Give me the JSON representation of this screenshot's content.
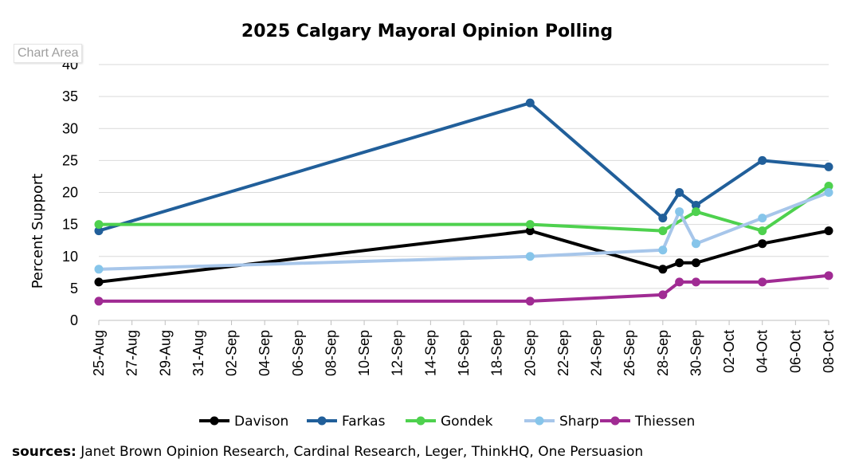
{
  "tooltip": "Chart Area",
  "source": {
    "label": "sources:",
    "text": " Janet Brown Opinion Research, Cardinal Research, Leger, ThinkHQ, One Persuasion"
  },
  "chart_data": {
    "type": "line",
    "title": "2025 Calgary Mayoral Opinion Polling",
    "ylabel": "Percent Support",
    "xlabel": "",
    "ylim": [
      0,
      40
    ],
    "yticks": [
      0,
      5,
      10,
      15,
      20,
      25,
      30,
      35,
      40
    ],
    "xlim": [
      "2025-08-25",
      "2025-10-08"
    ],
    "xtick_labels": [
      "25-Aug",
      "27-Aug",
      "29-Aug",
      "31-Aug",
      "02-Sep",
      "04-Sep",
      "06-Sep",
      "08-Sep",
      "10-Sep",
      "12-Sep",
      "14-Sep",
      "16-Sep",
      "18-Sep",
      "20-Sep",
      "22-Sep",
      "24-Sep",
      "26-Sep",
      "28-Sep",
      "30-Sep",
      "02-Oct",
      "04-Oct",
      "06-Oct",
      "08-Oct"
    ],
    "grid": true,
    "legend_position": "bottom",
    "series": [
      {
        "name": "Davison",
        "color": "#000000",
        "x": [
          "2025-08-25",
          "2025-09-20",
          "2025-09-28",
          "2025-09-29",
          "2025-09-30",
          "2025-10-04",
          "2025-10-08"
        ],
        "values": [
          6,
          14,
          8,
          9,
          9,
          12,
          14
        ]
      },
      {
        "name": "Farkas",
        "color": "#215f9a",
        "x": [
          "2025-08-25",
          "2025-09-20",
          "2025-09-28",
          "2025-09-29",
          "2025-09-30",
          "2025-10-04",
          "2025-10-08"
        ],
        "values": [
          14,
          34,
          16,
          20,
          18,
          25,
          24
        ]
      },
      {
        "name": "Gondek",
        "color": "#4ed14e",
        "x": [
          "2025-08-25",
          "2025-09-20",
          "2025-09-28",
          "2025-09-30",
          "2025-10-04",
          "2025-10-08"
        ],
        "values": [
          15,
          15,
          14,
          17,
          14,
          21
        ]
      },
      {
        "name": "Sharp",
        "color": "#a7c6ea",
        "x": [
          "2025-08-25",
          "2025-09-20",
          "2025-09-28",
          "2025-09-29",
          "2025-09-30",
          "2025-10-04",
          "2025-10-08"
        ],
        "values": [
          8,
          10,
          11,
          17,
          12,
          16,
          20
        ],
        "marker_color": "#86c5ea"
      },
      {
        "name": "Thiessen",
        "color": "#a02b93",
        "x": [
          "2025-08-25",
          "2025-09-20",
          "2025-09-28",
          "2025-09-29",
          "2025-09-30",
          "2025-10-04",
          "2025-10-08"
        ],
        "values": [
          3,
          3,
          4,
          6,
          6,
          6,
          7
        ]
      }
    ]
  }
}
